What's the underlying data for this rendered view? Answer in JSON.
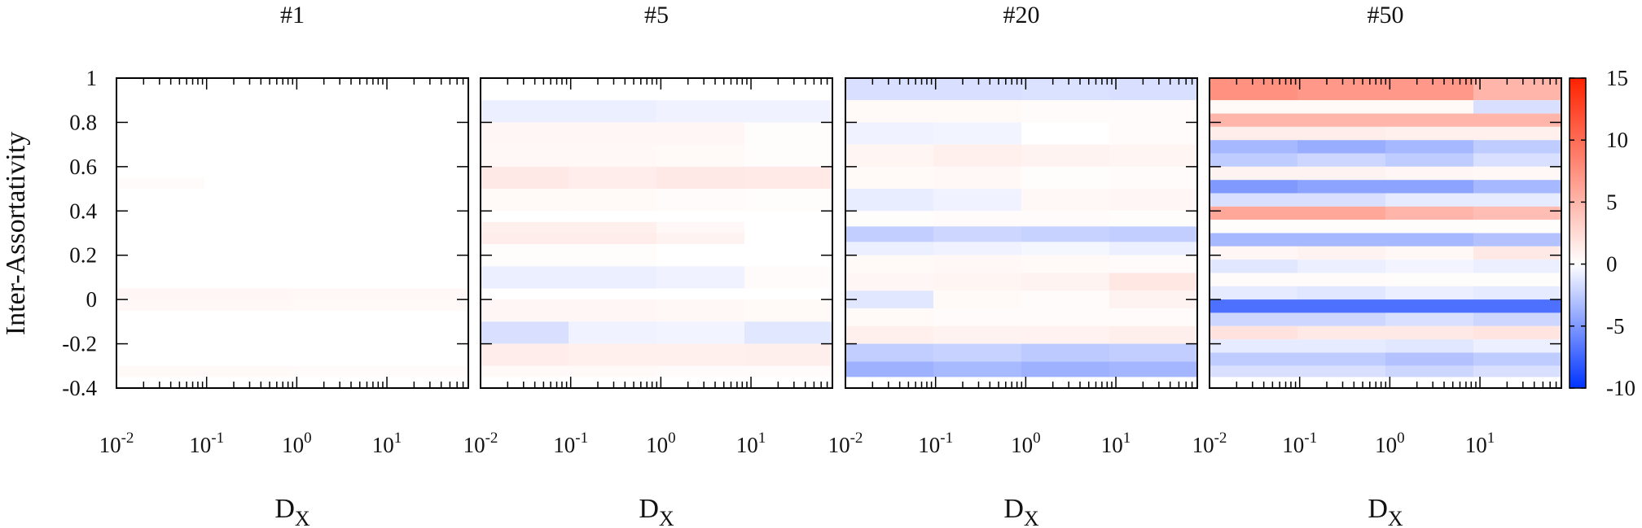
{
  "chart_data": {
    "type": "heatmap",
    "ylabel": "Inter-Assortativity",
    "xlabel_main": "D",
    "xlabel_sub": "X",
    "x_scale": "log",
    "xlim": [
      0.01,
      80
    ],
    "ylim": [
      -0.4,
      1
    ],
    "x_tick_labels": [
      {
        "base": "10",
        "exp": "-2",
        "value": 0.01
      },
      {
        "base": "10",
        "exp": "-1",
        "value": 0.1
      },
      {
        "base": "10",
        "exp": "0",
        "value": 1
      },
      {
        "base": "10",
        "exp": "1",
        "value": 10
      }
    ],
    "y_ticks": [
      {
        "value": -0.4,
        "label": "-0.4"
      },
      {
        "value": -0.2,
        "label": "-0.2"
      },
      {
        "value": 0,
        "label": "0"
      },
      {
        "value": 0.2,
        "label": "0.2"
      },
      {
        "value": 0.4,
        "label": "0.4"
      },
      {
        "value": 0.6,
        "label": "0.6"
      },
      {
        "value": 0.8,
        "label": "0.8"
      },
      {
        "value": 1,
        "label": "1"
      }
    ],
    "colorbar": {
      "range": [
        -10,
        15
      ],
      "ticks": [
        {
          "value": 15,
          "label": "15"
        },
        {
          "value": 10,
          "label": "10"
        },
        {
          "value": 5,
          "label": "5"
        },
        {
          "value": 0,
          "label": "0"
        },
        {
          "value": -5,
          "label": "-5"
        },
        {
          "value": -10,
          "label": "-10"
        }
      ],
      "colors": [
        "#0033ff",
        "#ffffff",
        "#ff2200"
      ]
    },
    "panels": [
      {
        "title": "#1",
        "rows": [
          {
            "y": [
              0.95,
              1.0
            ],
            "v": [
              0,
              0,
              0,
              0
            ]
          },
          {
            "y": [
              0.5,
              0.55
            ],
            "v": [
              0.3,
              0,
              0,
              0
            ]
          },
          {
            "y": [
              0.0,
              0.05
            ],
            "v": [
              0.6,
              0.6,
              0.5,
              0.5
            ]
          },
          {
            "y": [
              -0.05,
              0.0
            ],
            "v": [
              0.5,
              0.5,
              0.4,
              0.4
            ]
          },
          {
            "y": [
              -0.35,
              -0.3
            ],
            "v": [
              0.4,
              0.4,
              0.3,
              0.3
            ]
          }
        ]
      },
      {
        "title": "#5",
        "rows": [
          {
            "y": [
              0.8,
              0.9
            ],
            "v": [
              -0.8,
              -0.8,
              -0.6,
              -0.6
            ]
          },
          {
            "y": [
              0.7,
              0.8
            ],
            "v": [
              0.6,
              0.6,
              0.6,
              0.2
            ]
          },
          {
            "y": [
              0.6,
              0.7
            ],
            "v": [
              0.5,
              0.5,
              0.4,
              0.2
            ]
          },
          {
            "y": [
              0.5,
              0.6
            ],
            "v": [
              1.5,
              1.2,
              1.5,
              1.4
            ]
          },
          {
            "y": [
              0.4,
              0.5
            ],
            "v": [
              0.4,
              0.4,
              0.3,
              0.2
            ]
          },
          {
            "y": [
              0.3,
              0.35
            ],
            "v": [
              1.0,
              1.0,
              0.5,
              0
            ]
          },
          {
            "y": [
              0.25,
              0.3
            ],
            "v": [
              1.2,
              1.2,
              0.8,
              0
            ]
          },
          {
            "y": [
              0.15,
              0.25
            ],
            "v": [
              0.2,
              0.2,
              0,
              0
            ]
          },
          {
            "y": [
              0.05,
              0.15
            ],
            "v": [
              -0.8,
              -0.8,
              -0.6,
              0.3
            ]
          },
          {
            "y": [
              -0.1,
              0.0
            ],
            "v": [
              0.6,
              0.6,
              0.5,
              0.4
            ]
          },
          {
            "y": [
              -0.2,
              -0.1
            ],
            "v": [
              -1.5,
              -0.6,
              -0.5,
              -1.2
            ]
          },
          {
            "y": [
              -0.3,
              -0.2
            ],
            "v": [
              1.2,
              1.0,
              1.0,
              1.1
            ]
          },
          {
            "y": [
              -0.35,
              -0.3
            ],
            "v": [
              0.4,
              0.4,
              0.3,
              0.3
            ]
          }
        ]
      },
      {
        "title": "#20",
        "rows": [
          {
            "y": [
              0.9,
              1.0
            ],
            "v": [
              -1.5,
              -1.5,
              -1.4,
              -1.5
            ]
          },
          {
            "y": [
              0.8,
              0.9
            ],
            "v": [
              0.4,
              0.4,
              0.3,
              0.3
            ]
          },
          {
            "y": [
              0.7,
              0.8
            ],
            "v": [
              -0.6,
              -0.5,
              0,
              0.3
            ]
          },
          {
            "y": [
              0.6,
              0.7
            ],
            "v": [
              0.7,
              1.0,
              0.8,
              0.7
            ]
          },
          {
            "y": [
              0.5,
              0.6
            ],
            "v": [
              0.4,
              0.5,
              0.2,
              0.3
            ]
          },
          {
            "y": [
              0.4,
              0.5
            ],
            "v": [
              -0.9,
              -0.6,
              0.5,
              0.6
            ]
          },
          {
            "y": [
              0.33,
              0.4
            ],
            "v": [
              0.2,
              0.3,
              0.3,
              0.2
            ]
          },
          {
            "y": [
              0.26,
              0.33
            ],
            "v": [
              -2.4,
              -2.0,
              -2.2,
              -2.4
            ]
          },
          {
            "y": [
              0.2,
              0.26
            ],
            "v": [
              -0.8,
              -0.6,
              -0.4,
              -0.8
            ]
          },
          {
            "y": [
              0.12,
              0.2
            ],
            "v": [
              0.4,
              0.5,
              0.4,
              0.3
            ]
          },
          {
            "y": [
              0.04,
              0.12
            ],
            "v": [
              0.6,
              0.7,
              0.8,
              1.6
            ]
          },
          {
            "y": [
              -0.04,
              0.04
            ],
            "v": [
              -1.2,
              0.4,
              0.3,
              0.8
            ]
          },
          {
            "y": [
              -0.12,
              -0.04
            ],
            "v": [
              0.4,
              0.3,
              0.3,
              0.3
            ]
          },
          {
            "y": [
              -0.2,
              -0.12
            ],
            "v": [
              1.0,
              0.8,
              0.9,
              1.1
            ]
          },
          {
            "y": [
              -0.28,
              -0.2
            ],
            "v": [
              -2.4,
              -2.2,
              -2.6,
              -2.4
            ]
          },
          {
            "y": [
              -0.35,
              -0.28
            ],
            "v": [
              -3.8,
              -3.4,
              -3.8,
              -3.6
            ]
          }
        ]
      },
      {
        "title": "#50",
        "rows": [
          {
            "y": [
              0.9,
              1.0
            ],
            "v": [
              7.5,
              7.0,
              7.0,
              5.0
            ]
          },
          {
            "y": [
              0.84,
              0.9
            ],
            "v": [
              0.4,
              0.4,
              0.4,
              -1.5
            ]
          },
          {
            "y": [
              0.78,
              0.84
            ],
            "v": [
              5.0,
              5.0,
              5.0,
              5.0
            ]
          },
          {
            "y": [
              0.72,
              0.78
            ],
            "v": [
              1.2,
              1.2,
              1.0,
              1.0
            ]
          },
          {
            "y": [
              0.66,
              0.72
            ],
            "v": [
              -3.5,
              -4.0,
              -3.5,
              -2.5
            ]
          },
          {
            "y": [
              0.6,
              0.66
            ],
            "v": [
              -2.5,
              -2.0,
              -2.5,
              -1.5
            ]
          },
          {
            "y": [
              0.54,
              0.6
            ],
            "v": [
              0.8,
              0.8,
              0.6,
              0.5
            ]
          },
          {
            "y": [
              0.48,
              0.54
            ],
            "v": [
              -5.0,
              -4.5,
              -4.5,
              -3.5
            ]
          },
          {
            "y": [
              0.42,
              0.48
            ],
            "v": [
              -1.5,
              -1.5,
              -1.0,
              -1.0
            ]
          },
          {
            "y": [
              0.36,
              0.42
            ],
            "v": [
              6.0,
              6.0,
              5.0,
              4.5
            ]
          },
          {
            "y": [
              0.3,
              0.36
            ],
            "v": [
              0.2,
              0.2,
              0.2,
              0.2
            ]
          },
          {
            "y": [
              0.24,
              0.3
            ],
            "v": [
              -3.5,
              -3.5,
              -3.5,
              -3.0
            ]
          },
          {
            "y": [
              0.18,
              0.24
            ],
            "v": [
              0.6,
              0.8,
              0.5,
              1.5
            ]
          },
          {
            "y": [
              0.12,
              0.18
            ],
            "v": [
              -1.2,
              -0.8,
              -0.5,
              -0.8
            ]
          },
          {
            "y": [
              0.06,
              0.12
            ],
            "v": [
              0.3,
              0.3,
              0.2,
              0.2
            ]
          },
          {
            "y": [
              0.0,
              0.06
            ],
            "v": [
              -1.0,
              -1.2,
              -0.8,
              -1.0
            ]
          },
          {
            "y": [
              -0.06,
              0.0
            ],
            "v": [
              -7.0,
              -7.0,
              -7.0,
              -7.0
            ]
          },
          {
            "y": [
              -0.12,
              -0.06
            ],
            "v": [
              -2.0,
              -2.0,
              -1.5,
              -2.0
            ]
          },
          {
            "y": [
              -0.18,
              -0.12
            ],
            "v": [
              2.0,
              1.5,
              1.5,
              1.8
            ]
          },
          {
            "y": [
              -0.24,
              -0.18
            ],
            "v": [
              -1.0,
              -1.0,
              -1.2,
              -0.8
            ]
          },
          {
            "y": [
              -0.3,
              -0.24
            ],
            "v": [
              -2.5,
              -2.5,
              -3.0,
              -2.5
            ]
          },
          {
            "y": [
              -0.35,
              -0.3
            ],
            "v": [
              -1.5,
              -1.5,
              -2.0,
              -1.5
            ]
          }
        ]
      }
    ]
  }
}
